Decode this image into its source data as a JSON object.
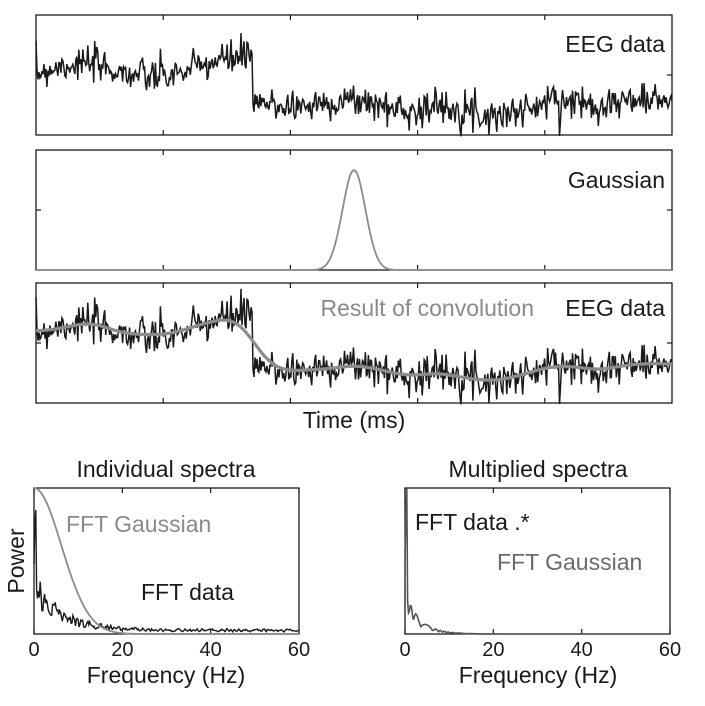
{
  "chart_data": [
    {
      "type": "line",
      "panel": "EEG data",
      "label": "EEG data",
      "series": [
        {
          "name": "EEG data",
          "color": "#1a1a1a"
        }
      ],
      "xlabel": "",
      "ylabel": "",
      "note": "noisy EEG trace; upward drift peaking near 35% of time span, then drop to lower baseline"
    },
    {
      "type": "line",
      "panel": "Gaussian",
      "label": "Gaussian",
      "series": [
        {
          "name": "Gaussian",
          "color": "#8c8c8c",
          "center_fraction": 0.5,
          "width_fraction": 0.018
        }
      ],
      "xlabel": "",
      "ylabel": ""
    },
    {
      "type": "line",
      "panel": "Convolution",
      "labels": {
        "result": "Result of convolution",
        "eeg": "EEG data"
      },
      "series": [
        {
          "name": "EEG data",
          "color": "#1a1a1a"
        },
        {
          "name": "Result of convolution",
          "color": "#8c8c8c"
        }
      ],
      "xlabel": "Time (ms)",
      "ylabel": ""
    },
    {
      "type": "line",
      "panel": "Individual spectra",
      "title": "Individual spectra",
      "xlabel": "Frequency (Hz)",
      "ylabel": "Power",
      "xlim": [
        0,
        60
      ],
      "xticks": [
        "0",
        "20",
        "40",
        "60"
      ],
      "series": [
        {
          "name": "FFT Gaussian",
          "color": "#8c8c8c",
          "x": [
            0,
            2,
            4,
            6,
            8,
            10,
            12,
            14,
            16,
            18,
            20
          ],
          "y": [
            1.0,
            0.93,
            0.76,
            0.54,
            0.33,
            0.17,
            0.07,
            0.025,
            0.008,
            0.002,
            0.0
          ]
        },
        {
          "name": "FFT data",
          "color": "#1a1a1a",
          "x": [
            0,
            1,
            2,
            3,
            4,
            5,
            6,
            7,
            8,
            10,
            15,
            20,
            30,
            40,
            50,
            60
          ],
          "y": [
            1.0,
            0.35,
            0.28,
            0.2,
            0.18,
            0.12,
            0.15,
            0.1,
            0.12,
            0.08,
            0.05,
            0.04,
            0.03,
            0.03,
            0.03,
            0.03
          ]
        }
      ],
      "annotations": [
        "FFT Gaussian",
        "FFT data"
      ]
    },
    {
      "type": "line",
      "panel": "Multiplied spectra",
      "title": "Multiplied spectra",
      "xlabel": "Frequency (Hz)",
      "ylabel": "",
      "xlim": [
        0,
        60
      ],
      "xticks": [
        "0",
        "20",
        "40",
        "60"
      ],
      "series": [
        {
          "name": "FFT data .* FFT Gaussian",
          "color": "#555555",
          "x": [
            0,
            1,
            2,
            3,
            4,
            5,
            6,
            7,
            8,
            10,
            12,
            15,
            20,
            60
          ],
          "y": [
            1.0,
            0.3,
            0.22,
            0.14,
            0.12,
            0.07,
            0.07,
            0.04,
            0.04,
            0.02,
            0.01,
            0.005,
            0.0,
            0.0
          ]
        }
      ],
      "annotations": [
        "FFT data .*",
        "FFT Gaussian"
      ]
    }
  ]
}
